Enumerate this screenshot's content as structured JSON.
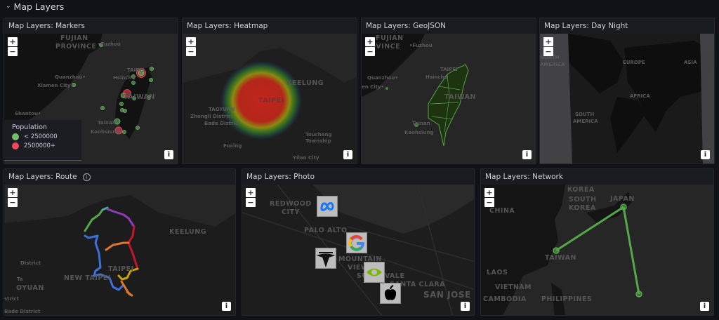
{
  "row": {
    "title": "Map Layers"
  },
  "panels": {
    "markers": {
      "title": "Map Layers: Markers",
      "labels": [
        "FUJIAN",
        "PROVINCE",
        "•Fuzhou",
        "Quanzhou•",
        "Xiamen City•",
        "Shantou•",
        "TAIPEI",
        "Hsinchu",
        "TAIWAN",
        "Tainan",
        "Kaohsiung"
      ],
      "legend": {
        "title": "Population",
        "items": [
          {
            "label": "< 2500000",
            "color": "#73bf69"
          },
          {
            "label": "2500000+",
            "color": "#f2495c"
          }
        ]
      }
    },
    "heatmap": {
      "title": "Map Layers: Heatmap",
      "labels": [
        "KEELUNG",
        "TAIPEI",
        "TAOYUAN",
        "Zhongli District",
        "Bade District",
        "Toucheng",
        "Township",
        "Fuxing",
        "Yilan City"
      ]
    },
    "geojson": {
      "title": "Map Layers: GeoJSON",
      "labels": [
        "FUJIAN",
        "OVINCE",
        "•Fuzhou",
        "Quanzhou•",
        "en City•",
        "TAIPEI",
        "Hsinchu",
        "TAIWAN",
        "Tainan",
        "Kaohsiung"
      ]
    },
    "daynight": {
      "title": "Map Layers: Day Night",
      "labels": [
        "NORTH",
        "AMERICA",
        "EUROPE",
        "ASIA",
        "AFRICA",
        "SOUTH",
        "AMERICA"
      ]
    },
    "route": {
      "title": "Map Layers: Route",
      "labels": [
        "KEELUNG",
        "TAIPEI",
        "NEW TAIPEI",
        "District",
        "Ta",
        "OYUAN",
        "strict",
        "Bade District"
      ]
    },
    "photo": {
      "title": "Map Layers: Photo",
      "labels": [
        "REDWOOD",
        "CITY",
        "PALO ALTO",
        "MOUNTAIN",
        "VIEW",
        "SUNNYVALE",
        "SANTA CLARA",
        "SAN JOSE"
      ],
      "photos": [
        "meta",
        "google",
        "tesla",
        "nvidia",
        "apple"
      ]
    },
    "network": {
      "title": "Map Layers: Network",
      "labels": [
        "KOREA",
        "SOUTH",
        "KOREA",
        "JAPAN",
        "CHINA",
        "TAIWAN",
        "LAOS",
        "VIETNAM",
        "CAMBODIA",
        "PHILIPPINES"
      ],
      "line_color": "#56a64b"
    }
  },
  "controls": {
    "zoom_in": "+",
    "zoom_out": "−",
    "attribution": "i",
    "info": "i"
  }
}
